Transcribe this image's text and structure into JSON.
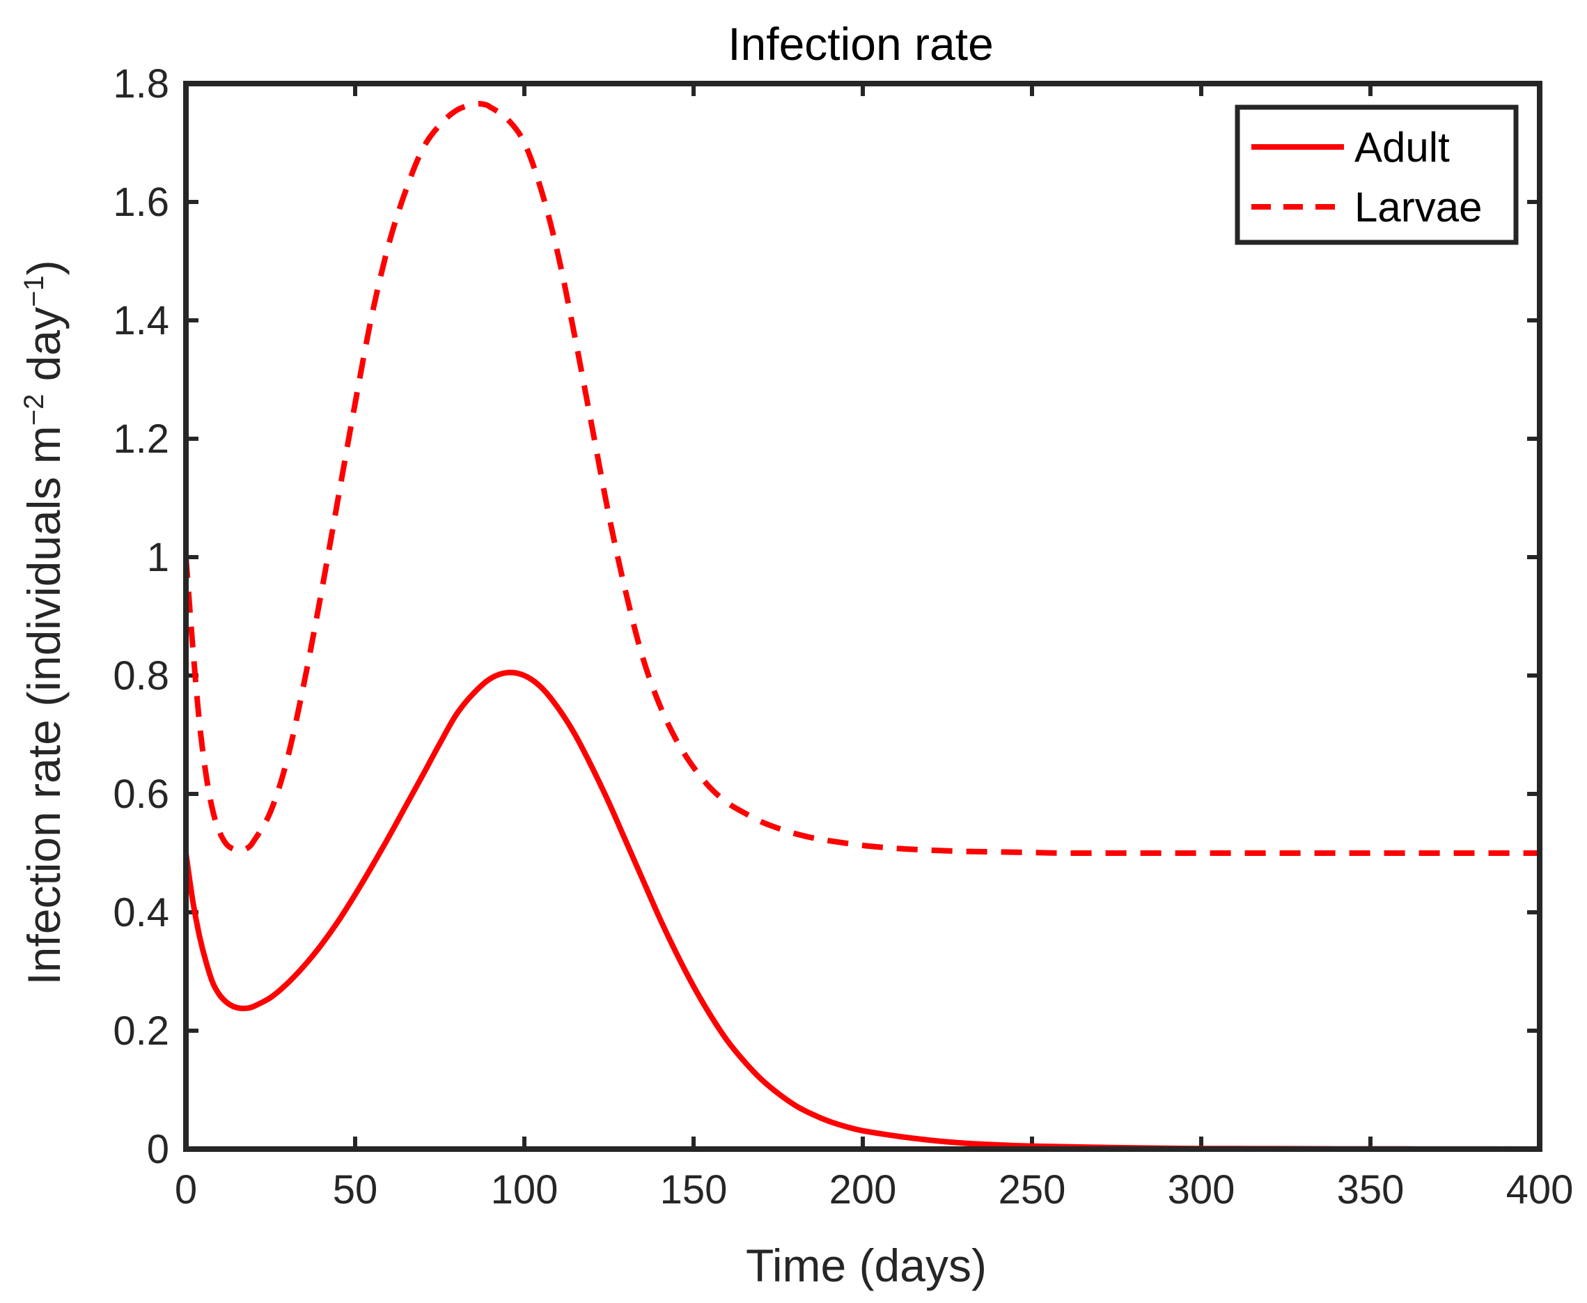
{
  "chart_data": {
    "type": "line",
    "title": "Infection rate",
    "xlabel": "Time (days)",
    "ylabel": {
      "text": "Infection rate (individuals m",
      "sup1": "−2",
      "mid": " day",
      "sup2": "−1",
      "end": ")"
    },
    "xlim": [
      0,
      400
    ],
    "ylim": [
      0,
      1.8
    ],
    "xticks": [
      0,
      50,
      100,
      150,
      200,
      250,
      300,
      350,
      400
    ],
    "xtick_labels": [
      "0",
      "50",
      "100",
      "150",
      "200",
      "250",
      "300",
      "350",
      "400"
    ],
    "yticks": [
      0,
      0.2,
      0.4,
      0.6,
      0.8,
      1.0,
      1.2,
      1.4,
      1.6,
      1.8
    ],
    "ytick_labels": [
      "0",
      "0.2",
      "0.4",
      "0.6",
      "0.8",
      "1",
      "1.2",
      "1.4",
      "1.6",
      "1.8"
    ],
    "grid": false,
    "legend_position": "top-right",
    "series": [
      {
        "name": "Adult",
        "color": "#ff0000",
        "style": "solid",
        "x": [
          0,
          2,
          4,
          6,
          8,
          10,
          12,
          14,
          16,
          18,
          20,
          25,
          30,
          35,
          40,
          45,
          50,
          55,
          60,
          65,
          70,
          75,
          80,
          85,
          90,
          95,
          100,
          105,
          110,
          115,
          120,
          125,
          130,
          135,
          140,
          145,
          150,
          155,
          160,
          165,
          170,
          175,
          180,
          185,
          190,
          195,
          200,
          210,
          220,
          230,
          240,
          250,
          260,
          270,
          280,
          300,
          320,
          340,
          360,
          380,
          400
        ],
        "y": [
          0.5,
          0.42,
          0.36,
          0.315,
          0.28,
          0.26,
          0.248,
          0.241,
          0.238,
          0.238,
          0.241,
          0.256,
          0.28,
          0.31,
          0.345,
          0.385,
          0.43,
          0.478,
          0.528,
          0.58,
          0.632,
          0.685,
          0.735,
          0.77,
          0.795,
          0.805,
          0.8,
          0.78,
          0.745,
          0.7,
          0.645,
          0.585,
          0.52,
          0.455,
          0.39,
          0.33,
          0.275,
          0.226,
          0.183,
          0.148,
          0.118,
          0.094,
          0.074,
          0.059,
          0.047,
          0.038,
          0.031,
          0.022,
          0.015,
          0.01,
          0.007,
          0.005,
          0.004,
          0.003,
          0.002,
          0.001,
          0.0007,
          0.0004,
          0.0002,
          0.0001,
          0.0
        ]
      },
      {
        "name": "Larvae",
        "color": "#ff0000",
        "style": "dashed",
        "x": [
          0,
          2,
          4,
          6,
          8,
          10,
          12,
          14,
          16,
          18,
          20,
          25,
          30,
          35,
          40,
          45,
          50,
          55,
          60,
          65,
          70,
          75,
          80,
          85,
          88,
          90,
          95,
          100,
          105,
          110,
          115,
          120,
          125,
          130,
          135,
          140,
          145,
          150,
          155,
          160,
          165,
          170,
          175,
          180,
          185,
          190,
          200,
          210,
          220,
          230,
          240,
          250,
          260,
          280,
          300,
          320,
          340,
          360,
          380,
          400
        ],
        "y": [
          1.0,
          0.85,
          0.72,
          0.63,
          0.57,
          0.535,
          0.515,
          0.507,
          0.505,
          0.508,
          0.52,
          0.57,
          0.66,
          0.79,
          0.94,
          1.1,
          1.26,
          1.41,
          1.53,
          1.62,
          1.69,
          1.73,
          1.755,
          1.765,
          1.765,
          1.76,
          1.74,
          1.7,
          1.62,
          1.51,
          1.37,
          1.22,
          1.07,
          0.94,
          0.83,
          0.75,
          0.69,
          0.645,
          0.61,
          0.585,
          0.568,
          0.553,
          0.542,
          0.533,
          0.526,
          0.521,
          0.513,
          0.508,
          0.505,
          0.503,
          0.502,
          0.501,
          0.5,
          0.5,
          0.5,
          0.5,
          0.5,
          0.5,
          0.5,
          0.5
        ]
      }
    ]
  }
}
